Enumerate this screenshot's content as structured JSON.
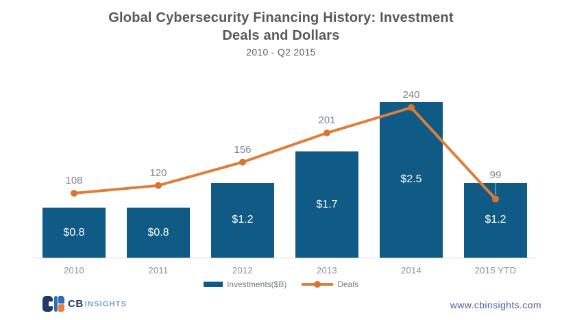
{
  "header": {
    "title_lines": [
      "Global Cybersecurity Financing History: Investment",
      "Deals and Dollars"
    ],
    "subtitle": "2010 - Q2 2015"
  },
  "chart_data": {
    "type": "bar+line combo",
    "title": "Global Cybersecurity Financing History: Investment Deals and Dollars",
    "subtitle": "2010 - Q2 2015",
    "categories": [
      "2010",
      "2011",
      "2012",
      "2013",
      "2014",
      "2015 YTD"
    ],
    "series": [
      {
        "name": "Investments($B)",
        "type": "bar",
        "color": "#0f5b85",
        "values": [
          0.8,
          0.8,
          1.2,
          1.7,
          2.5,
          1.2
        ],
        "display_labels": [
          "$0.8",
          "$0.8",
          "$1.2",
          "$1.7",
          "$2.5",
          "$1.2"
        ]
      },
      {
        "name": "Deals",
        "type": "line",
        "color": "#df7e3c",
        "values": [
          108,
          120,
          156,
          201,
          240,
          99
        ],
        "display_labels": [
          "108",
          "120",
          "156",
          "201",
          "240",
          "99"
        ]
      }
    ],
    "xlabel": "",
    "ylabel": "",
    "grid": false,
    "y_axis_visible": false,
    "legend_position": "bottom"
  },
  "legend": {
    "investments_label": "Investments($B)",
    "deals_label": "Deals"
  },
  "footer": {
    "logo_cb": "CB",
    "logo_insights": "INSIGHTS",
    "website": "www.cbinsights.com"
  },
  "colors": {
    "bar_blue": "#0f5b85",
    "line_orange": "#df7e3c",
    "marker_orange": "#d97533",
    "title_gray": "#58585b",
    "deals_label_gray": "#7e858e",
    "x_label_gray": "#8f9197",
    "axis_line_gray": "#d9d9d9",
    "leader_line_gray": "#c6c6c6",
    "legend_text_gray": "#6f7780",
    "url_blue": "#4a6191",
    "logo_navy": "#1f3a66",
    "logo_blue": "#2f6eb4",
    "logo_orange": "#e8813b",
    "logo_insights_blue": "#6d9ccb"
  }
}
